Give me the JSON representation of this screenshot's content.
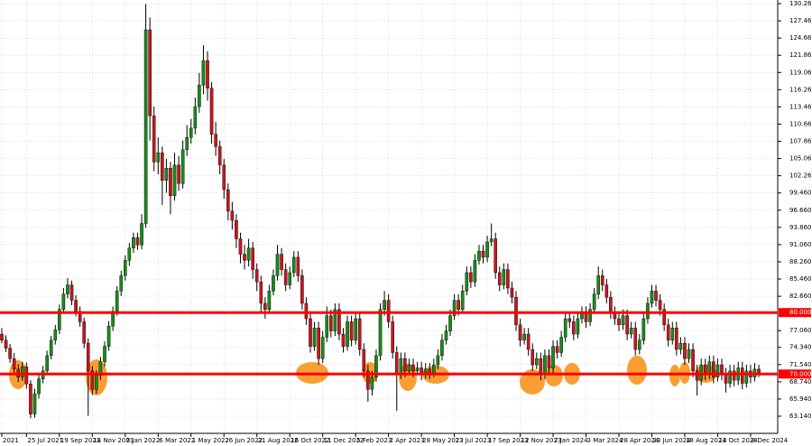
{
  "chart_data": {
    "type": "candlestick",
    "categories": [
      "2021",
      null,
      null,
      null,
      null,
      null,
      "25 Jul 2021",
      null,
      null,
      null,
      null,
      null,
      null,
      null,
      "19 Sep 2021",
      null,
      null,
      null,
      null,
      null,
      null,
      null,
      "14 Nov 2021",
      null,
      null,
      null,
      null,
      null,
      null,
      null,
      "9 Jan 2022",
      null,
      null,
      null,
      null,
      null,
      null,
      null,
      "6 Mar 2022",
      null,
      null,
      null,
      null,
      null,
      null,
      null,
      "1 May 2022",
      null,
      null,
      null,
      null,
      null,
      null,
      null,
      "26 Jun 2022",
      null,
      null,
      null,
      null,
      null,
      null,
      null,
      "21 Aug 2022",
      null,
      null,
      null,
      null,
      null,
      null,
      null,
      "16 Oct 2022",
      null,
      null,
      null,
      null,
      null,
      null,
      null,
      "11 Dec 2022",
      null,
      null,
      null,
      null,
      null,
      null,
      null,
      "5 Feb 2023",
      null,
      null,
      null,
      null,
      null,
      null,
      null,
      "2 Apr 2023",
      null,
      null,
      null,
      null,
      null,
      null,
      null,
      "28 May 2023",
      null,
      null,
      null,
      null,
      null,
      null,
      null,
      "23 Jul 2023",
      null,
      null,
      null,
      null,
      null,
      null,
      null,
      "17 Sep 2023",
      null,
      null,
      null,
      null,
      null,
      null,
      null,
      "12 Nov 2023",
      null,
      null,
      null,
      null,
      null,
      null,
      null,
      "7 Jan 2024",
      null,
      null,
      null,
      null,
      null,
      null,
      null,
      "3 Mar 2024",
      null,
      null,
      null,
      null,
      null,
      null,
      null,
      "28 Apr 2024",
      null,
      null,
      null,
      null,
      null,
      null,
      null,
      "23 Jun 2024",
      null,
      null,
      null,
      null,
      null,
      null,
      null,
      "18 Aug 2024",
      null,
      null,
      null,
      null,
      null,
      null,
      null,
      "13 Oct 2024",
      null,
      null,
      null,
      null,
      null,
      null,
      null,
      "8 Dec 2024",
      null,
      null
    ],
    "ohlc": [
      [
        76.5,
        77.5,
        75,
        75.5
      ],
      [
        75.5,
        76.3,
        73.6,
        74.2
      ],
      [
        74.2,
        74.9,
        71.8,
        72.5
      ],
      [
        72.5,
        73.4,
        70.1,
        70.8
      ],
      [
        70.8,
        71.6,
        68.7,
        69.5
      ],
      [
        69.5,
        72.0,
        68.9,
        71.2
      ],
      [
        71.2,
        71.9,
        67.6,
        68.4
      ],
      [
        68.4,
        69.0,
        62.8,
        63.5
      ],
      [
        63.5,
        67.6,
        62.9,
        66.8
      ],
      [
        66.8,
        70.0,
        66.0,
        69.2
      ],
      [
        69.2,
        71.3,
        68.5,
        70.5
      ],
      [
        70.5,
        73.8,
        69.9,
        73.0
      ],
      [
        73.0,
        76.2,
        72.4,
        75.5
      ],
      [
        75.5,
        78.0,
        74.8,
        77.2
      ],
      [
        77.2,
        81.3,
        76.5,
        80.5
      ],
      [
        80.5,
        84.0,
        79.8,
        83.0
      ],
      [
        83.0,
        85.6,
        82.3,
        84.5
      ],
      [
        84.5,
        85.2,
        81.2,
        82.0
      ],
      [
        82.0,
        82.8,
        79.4,
        80.2
      ],
      [
        80.2,
        81.0,
        77.7,
        78.5
      ],
      [
        78.5,
        79.2,
        74.2,
        75.0
      ],
      [
        75.0,
        75.8,
        63.2,
        70.5
      ],
      [
        70.5,
        71.3,
        66.6,
        67.5
      ],
      [
        67.5,
        70.6,
        66.8,
        69.8
      ],
      [
        69.8,
        72.8,
        69.0,
        72.0
      ],
      [
        72.0,
        75.3,
        71.2,
        74.5
      ],
      [
        74.5,
        78.6,
        73.8,
        77.8
      ],
      [
        77.8,
        81.0,
        77.0,
        80.2
      ],
      [
        80.2,
        84.3,
        79.5,
        83.5
      ],
      [
        83.5,
        86.8,
        82.7,
        86.0
      ],
      [
        86.0,
        89.3,
        85.2,
        88.5
      ],
      [
        88.5,
        91.3,
        87.6,
        90.5
      ],
      [
        90.5,
        93.0,
        89.7,
        92.2
      ],
      [
        92.2,
        93.0,
        90.2,
        91.0
      ],
      [
        91.0,
        96.0,
        90.3,
        94.5
      ],
      [
        94.5,
        130.2,
        93.8,
        126.0
      ],
      [
        126.0,
        128.0,
        108.0,
        112.0
      ],
      [
        112.0,
        113.5,
        103.0,
        104.5
      ],
      [
        104.5,
        108.5,
        102.5,
        106.0
      ],
      [
        106.0,
        107.0,
        97.5,
        101.5
      ],
      [
        101.5,
        105.0,
        99.5,
        103.5
      ],
      [
        103.5,
        104.5,
        96.0,
        99.0
      ],
      [
        99.0,
        106.0,
        98.2,
        104.0
      ],
      [
        104.0,
        105.5,
        99.8,
        101.0
      ],
      [
        101.0,
        108.0,
        100.2,
        106.5
      ],
      [
        106.5,
        110.5,
        105.5,
        108.5
      ],
      [
        108.5,
        111.5,
        107.5,
        110.0
      ],
      [
        110.0,
        115.0,
        109.0,
        113.5
      ],
      [
        113.5,
        119.0,
        112.5,
        117.0
      ],
      [
        117.0,
        123.5,
        115.5,
        121.0
      ],
      [
        121.0,
        122.5,
        114.5,
        116.5
      ],
      [
        116.5,
        117.5,
        107.5,
        109.0
      ],
      [
        109.0,
        111.0,
        105.5,
        107.0
      ],
      [
        107.0,
        108.0,
        102.5,
        104.0
      ],
      [
        104.0,
        105.0,
        98.5,
        100.0
      ],
      [
        100.0,
        101.0,
        95.0,
        96.5
      ],
      [
        96.5,
        98.0,
        93.5,
        95.0
      ],
      [
        95.0,
        96.0,
        90.5,
        92.0
      ],
      [
        92.0,
        93.0,
        88.0,
        89.5
      ],
      [
        89.5,
        91.0,
        87.0,
        88.5
      ],
      [
        88.5,
        92.0,
        87.5,
        90.5
      ],
      [
        90.5,
        91.5,
        85.5,
        87.0
      ],
      [
        87.0,
        88.0,
        83.5,
        85.0
      ],
      [
        85.0,
        86.0,
        80.0,
        81.5
      ],
      [
        81.5,
        82.5,
        79.0,
        80.5
      ],
      [
        80.5,
        84.5,
        79.8,
        83.5
      ],
      [
        83.5,
        87.0,
        82.8,
        86.0
      ],
      [
        86.0,
        91.0,
        85.2,
        89.5
      ],
      [
        89.5,
        90.5,
        86.0,
        87.0
      ],
      [
        87.0,
        88.0,
        83.5,
        84.5
      ],
      [
        84.5,
        87.5,
        83.8,
        86.5
      ],
      [
        86.5,
        90.0,
        85.8,
        89.0
      ],
      [
        89.0,
        90.0,
        85.0,
        86.0
      ],
      [
        86.0,
        87.0,
        80.5,
        81.5
      ],
      [
        81.5,
        82.5,
        78.0,
        79.0
      ],
      [
        79.0,
        80.0,
        73.5,
        74.5
      ],
      [
        74.5,
        78.5,
        73.8,
        77.5
      ],
      [
        77.5,
        78.5,
        71.5,
        72.5
      ],
      [
        72.5,
        77.0,
        71.8,
        76.0
      ],
      [
        76.0,
        81.0,
        75.2,
        79.5
      ],
      [
        79.5,
        80.5,
        76.0,
        77.0
      ],
      [
        77.0,
        81.5,
        76.2,
        80.5
      ],
      [
        80.5,
        81.5,
        75.5,
        76.5
      ],
      [
        76.5,
        77.5,
        73.5,
        74.5
      ],
      [
        74.5,
        79.5,
        73.8,
        78.5
      ],
      [
        78.5,
        79.5,
        74.5,
        75.5
      ],
      [
        75.5,
        80.0,
        74.8,
        79.0
      ],
      [
        79.0,
        80.0,
        73.0,
        74.0
      ],
      [
        74.0,
        75.0,
        69.5,
        70.5
      ],
      [
        70.5,
        71.5,
        65.5,
        67.5
      ],
      [
        67.5,
        70.5,
        66.5,
        69.5
      ],
      [
        69.5,
        74.0,
        68.8,
        73.0
      ],
      [
        73.0,
        81.5,
        72.2,
        80.5
      ],
      [
        80.5,
        83.5,
        79.5,
        82.0
      ],
      [
        82.0,
        83.0,
        77.5,
        78.5
      ],
      [
        78.5,
        79.5,
        72.5,
        73.5
      ],
      [
        73.5,
        74.5,
        64.0,
        70.0
      ],
      [
        70.0,
        73.5,
        69.2,
        72.5
      ],
      [
        72.5,
        73.5,
        69.5,
        70.5
      ],
      [
        70.5,
        72.5,
        69.8,
        71.5
      ],
      [
        71.5,
        72.5,
        69.5,
        70.5
      ],
      [
        70.5,
        72.0,
        69.8,
        71.0
      ],
      [
        71.0,
        72.0,
        69.0,
        70.0
      ],
      [
        70.0,
        71.8,
        69.3,
        70.8
      ],
      [
        70.8,
        71.8,
        69.2,
        70.2
      ],
      [
        70.2,
        72.5,
        69.5,
        71.5
      ],
      [
        71.5,
        74.0,
        70.8,
        73.0
      ],
      [
        73.0,
        76.5,
        72.2,
        75.5
      ],
      [
        75.5,
        78.0,
        74.8,
        77.0
      ],
      [
        77.0,
        80.5,
        76.2,
        79.5
      ],
      [
        79.5,
        83.0,
        78.8,
        82.0
      ],
      [
        82.0,
        83.0,
        79.5,
        80.5
      ],
      [
        80.5,
        84.5,
        79.8,
        83.5
      ],
      [
        83.5,
        87.5,
        82.8,
        86.5
      ],
      [
        86.5,
        87.5,
        84.0,
        85.0
      ],
      [
        85.0,
        89.5,
        84.2,
        88.5
      ],
      [
        88.5,
        91.0,
        87.8,
        90.0
      ],
      [
        90.0,
        91.0,
        88.0,
        89.0
      ],
      [
        89.0,
        92.5,
        88.2,
        91.5
      ],
      [
        91.5,
        94.5,
        90.8,
        92.0
      ],
      [
        92.0,
        93.0,
        85.5,
        86.5
      ],
      [
        86.5,
        87.5,
        83.5,
        84.5
      ],
      [
        84.5,
        88.0,
        83.8,
        87.0
      ],
      [
        87.0,
        88.0,
        83.0,
        84.0
      ],
      [
        84.0,
        85.0,
        81.5,
        82.5
      ],
      [
        82.5,
        83.5,
        77.0,
        78.0
      ],
      [
        78.0,
        79.0,
        74.5,
        75.5
      ],
      [
        75.5,
        77.5,
        74.8,
        76.5
      ],
      [
        76.5,
        77.5,
        73.0,
        74.0
      ],
      [
        74.0,
        75.0,
        70.5,
        71.5
      ],
      [
        71.5,
        73.5,
        70.8,
        72.5
      ],
      [
        72.5,
        73.5,
        69.0,
        70.0
      ],
      [
        70.0,
        74.0,
        69.2,
        73.0
      ],
      [
        73.0,
        74.0,
        70.0,
        71.0
      ],
      [
        71.0,
        75.5,
        70.2,
        74.5
      ],
      [
        74.5,
        75.5,
        72.5,
        73.5
      ],
      [
        73.5,
        77.0,
        72.8,
        76.0
      ],
      [
        76.0,
        80.0,
        75.2,
        79.0
      ],
      [
        79.0,
        80.0,
        77.5,
        78.5
      ],
      [
        78.5,
        79.5,
        75.5,
        76.5
      ],
      [
        76.5,
        80.0,
        75.8,
        79.0
      ],
      [
        79.0,
        81.0,
        78.2,
        80.0
      ],
      [
        80.0,
        81.0,
        77.5,
        78.5
      ],
      [
        78.5,
        81.5,
        77.8,
        80.5
      ],
      [
        80.5,
        84.0,
        79.8,
        83.0
      ],
      [
        83.0,
        87.5,
        82.2,
        86.0
      ],
      [
        86.0,
        87.0,
        83.5,
        84.5
      ],
      [
        84.5,
        85.5,
        81.5,
        82.5
      ],
      [
        82.5,
        83.5,
        79.0,
        80.0
      ],
      [
        80.0,
        81.0,
        78.0,
        79.0
      ],
      [
        79.0,
        80.0,
        77.0,
        78.0
      ],
      [
        78.0,
        80.5,
        77.2,
        79.5
      ],
      [
        79.5,
        80.5,
        75.5,
        76.5
      ],
      [
        76.5,
        78.5,
        75.8,
        77.5
      ],
      [
        77.5,
        78.5,
        73.0,
        74.0
      ],
      [
        74.0,
        76.5,
        73.2,
        75.5
      ],
      [
        75.5,
        80.0,
        74.8,
        79.0
      ],
      [
        79.0,
        82.5,
        78.2,
        81.5
      ],
      [
        81.5,
        84.5,
        80.8,
        83.5
      ],
      [
        83.5,
        84.5,
        81.0,
        82.0
      ],
      [
        82.0,
        83.0,
        79.5,
        80.5
      ],
      [
        80.5,
        81.5,
        77.0,
        78.0
      ],
      [
        78.0,
        79.0,
        74.5,
        75.5
      ],
      [
        75.5,
        78.5,
        74.8,
        77.5
      ],
      [
        77.5,
        78.5,
        73.0,
        74.0
      ],
      [
        74.0,
        76.0,
        73.2,
        75.0
      ],
      [
        75.0,
        76.0,
        71.5,
        72.5
      ],
      [
        72.5,
        75.0,
        71.8,
        74.0
      ],
      [
        74.0,
        75.0,
        69.5,
        70.5
      ],
      [
        70.5,
        71.5,
        66.5,
        69.0
      ],
      [
        69.0,
        72.5,
        68.2,
        71.5
      ],
      [
        71.5,
        72.5,
        69.0,
        70.0
      ],
      [
        70.0,
        73.0,
        69.2,
        72.0
      ],
      [
        72.0,
        73.0,
        68.5,
        69.5
      ],
      [
        69.5,
        72.5,
        68.8,
        71.5
      ],
      [
        71.5,
        72.5,
        69.0,
        70.0
      ],
      [
        70.0,
        71.0,
        67.0,
        68.5
      ],
      [
        68.5,
        71.5,
        67.8,
        70.5
      ],
      [
        70.5,
        71.5,
        68.0,
        69.0
      ],
      [
        69.0,
        72.0,
        68.2,
        71.0
      ],
      [
        71.0,
        72.0,
        67.5,
        68.5
      ],
      [
        68.5,
        71.5,
        67.8,
        70.5
      ],
      [
        70.5,
        71.5,
        68.5,
        69.5
      ],
      [
        69.5,
        71.8,
        68.8,
        70.8
      ],
      [
        70.8,
        71.5,
        69.5,
        70.2
      ]
    ],
    "up_color": "#1a8a1a",
    "down_color": "#c8161d",
    "ylim": [
      60.35,
      130.85
    ],
    "yticks": [
      {
        "value": 130.26,
        "label": "130.260"
      },
      {
        "value": 127.46,
        "label": "127.460"
      },
      {
        "value": 124.66,
        "label": "124.660"
      },
      {
        "value": 121.86,
        "label": "121.860"
      },
      {
        "value": 119.06,
        "label": "119.060"
      },
      {
        "value": 116.26,
        "label": "116.260"
      },
      {
        "value": 113.46,
        "label": "113.460"
      },
      {
        "value": 110.66,
        "label": "110.660"
      },
      {
        "value": 107.86,
        "label": "107.860"
      },
      {
        "value": 105.06,
        "label": "105.060"
      },
      {
        "value": 102.26,
        "label": "102.260"
      },
      {
        "value": 99.46,
        "label": "99.460"
      },
      {
        "value": 96.66,
        "label": "96.660"
      },
      {
        "value": 93.86,
        "label": "93.860"
      },
      {
        "value": 91.06,
        "label": "91.060"
      },
      {
        "value": 88.26,
        "label": "88.260"
      },
      {
        "value": 85.46,
        "label": "85.460"
      },
      {
        "value": 82.66,
        "label": "82.660"
      },
      {
        "value": 77.06,
        "label": "77.060"
      },
      {
        "value": 74.34,
        "label": "74.340"
      },
      {
        "value": 71.54,
        "label": "71.540"
      },
      {
        "value": 68.74,
        "label": "68.740"
      },
      {
        "value": 65.94,
        "label": "65.940"
      },
      {
        "value": 63.14,
        "label": "63.140"
      }
    ],
    "levels": [
      {
        "value": 80,
        "label": "80.000"
      },
      {
        "value": 70,
        "label": "70.000"
      }
    ],
    "level_color": "#ff0000",
    "grid": true
  }
}
